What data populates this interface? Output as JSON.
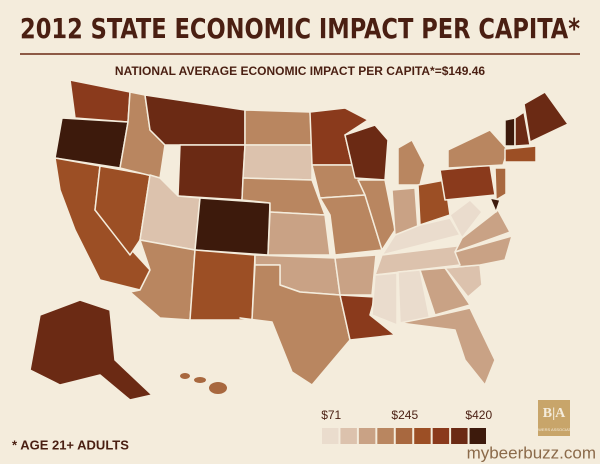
{
  "header": {
    "title": "2012 STATE ECONOMIC IMPACT PER CAPITA*",
    "subtitle": "NATIONAL AVERAGE ECONOMIC IMPACT PER CAPITA*=$149.46"
  },
  "legend": {
    "colors": [
      "#eadccd",
      "#dcc2ad",
      "#c9a285",
      "#b98660",
      "#a8683f",
      "#9c4f25",
      "#8a3a1c",
      "#6b2a14",
      "#3d1a0c"
    ],
    "range": [
      71,
      420
    ],
    "ticks": [
      {
        "value": 71,
        "label": "$71"
      },
      {
        "value": 245,
        "label": "$245"
      },
      {
        "value": 420,
        "label": "$420"
      }
    ]
  },
  "footnote": "* AGE 21+ ADULTS",
  "logo": {
    "initials": "B|A",
    "name": "BREWERS ASSOCIATION"
  },
  "watermark": "mybeerbuzz.com"
}
